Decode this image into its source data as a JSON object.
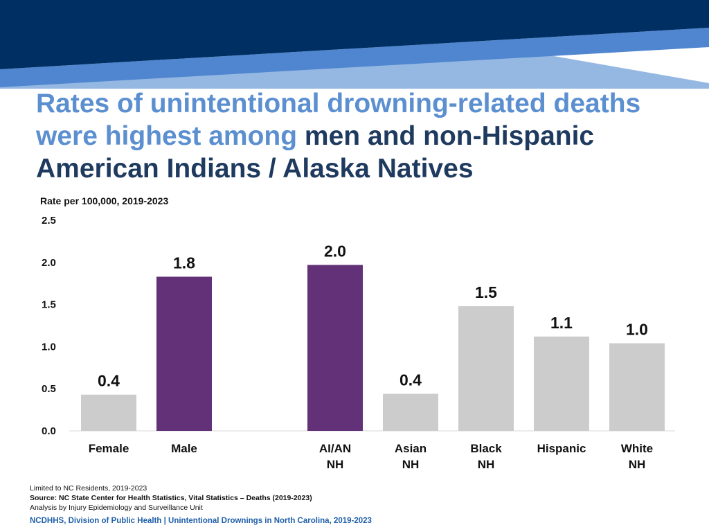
{
  "title": {
    "part1": "Rates of unintentional drowning-related deaths were highest among",
    "part2": "men and non-Hispanic American Indians / Alaska Natives"
  },
  "colors": {
    "banner_dark": "#002f63",
    "banner_mid": "#4f86cf",
    "banner_light": "#95b8e2",
    "title_light": "#5b8fd0",
    "title_dark": "#1f3a5f",
    "highlight_bar": "#623177",
    "other_bar": "#cccccc",
    "footer_text": "#1f5fa8"
  },
  "chart_data": {
    "type": "bar",
    "ylabel": "Rate per 100,000, 2019-2023",
    "ylim": [
      0,
      2.5
    ],
    "yticks": [
      "0.0",
      "0.5",
      "1.0",
      "1.5",
      "2.0",
      "2.5"
    ],
    "grid": false,
    "categories": [
      [
        "Female"
      ],
      [
        "Male"
      ],
      [
        "AI/AN",
        "NH"
      ],
      [
        "Asian",
        "NH"
      ],
      [
        "Black",
        "NH"
      ],
      [
        "Hispanic"
      ],
      [
        "White",
        "NH"
      ]
    ],
    "values": [
      0.43,
      1.83,
      1.97,
      0.44,
      1.48,
      1.12,
      1.04
    ],
    "labels": [
      "0.4",
      "1.8",
      "2.0",
      "0.4",
      "1.5",
      "1.1",
      "1.0"
    ],
    "highlighted": [
      false,
      true,
      true,
      false,
      false,
      false,
      false
    ]
  },
  "footnotes": {
    "line1": "Limited to NC Residents, 2019-2023",
    "line2": "Source: NC State Center for Health Statistics, Vital Statistics – Deaths (2019-2023)",
    "line3": "Analysis by Injury Epidemiology and Surveillance Unit"
  },
  "footer": "NCDHHS, Division of Public Health | Unintentional Drownings in North Carolina, 2019-2023"
}
